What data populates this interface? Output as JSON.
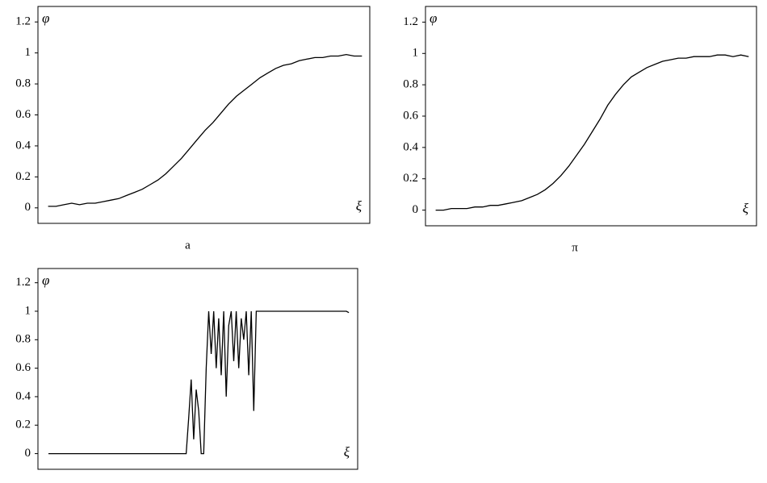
{
  "chart_data": [
    {
      "type": "line",
      "ylabel": "φ",
      "xlabel": "ξ",
      "caption": "a",
      "x": [
        0,
        1,
        2,
        3,
        4,
        5,
        6,
        7,
        8,
        9,
        10,
        11,
        12,
        13,
        14,
        15,
        16,
        17,
        18,
        19,
        20,
        21,
        22,
        23,
        24,
        25,
        26,
        27,
        28,
        29,
        30,
        31,
        32,
        33,
        34,
        35,
        36,
        37,
        38,
        39,
        40
      ],
      "values": [
        0.01,
        0.01,
        0.02,
        0.03,
        0.02,
        0.03,
        0.03,
        0.04,
        0.05,
        0.06,
        0.08,
        0.1,
        0.12,
        0.15,
        0.18,
        0.22,
        0.27,
        0.32,
        0.38,
        0.44,
        0.5,
        0.55,
        0.61,
        0.67,
        0.72,
        0.76,
        0.8,
        0.84,
        0.87,
        0.9,
        0.92,
        0.93,
        0.95,
        0.96,
        0.97,
        0.97,
        0.98,
        0.98,
        0.99,
        0.98,
        0.98
      ],
      "color": "#000000",
      "xlim": [
        -1.3,
        41
      ],
      "ylim": [
        -0.1,
        1.3
      ],
      "yticks": [
        0,
        0.2,
        0.4,
        0.6,
        0.8,
        1,
        1.2
      ]
    },
    {
      "type": "line",
      "ylabel": "φ",
      "xlabel": "ξ",
      "caption": "π",
      "x": [
        0,
        1,
        2,
        3,
        4,
        5,
        6,
        7,
        8,
        9,
        10,
        11,
        12,
        13,
        14,
        15,
        16,
        17,
        18,
        19,
        20,
        21,
        22,
        23,
        24,
        25,
        26,
        27,
        28,
        29,
        30,
        31,
        32,
        33,
        34,
        35,
        36,
        37,
        38,
        39,
        40
      ],
      "values": [
        0,
        0,
        0.01,
        0.01,
        0.01,
        0.02,
        0.02,
        0.03,
        0.03,
        0.04,
        0.05,
        0.06,
        0.08,
        0.1,
        0.13,
        0.17,
        0.22,
        0.28,
        0.35,
        0.42,
        0.5,
        0.58,
        0.67,
        0.74,
        0.8,
        0.85,
        0.88,
        0.91,
        0.93,
        0.95,
        0.96,
        0.97,
        0.97,
        0.98,
        0.98,
        0.98,
        0.99,
        0.99,
        0.98,
        0.99,
        0.98
      ],
      "color": "#000000",
      "xlim": [
        -1.3,
        41
      ],
      "ylim": [
        -0.1,
        1.3
      ],
      "yticks": [
        0,
        0.2,
        0.4,
        0.6,
        0.8,
        1,
        1.2
      ]
    },
    {
      "type": "line",
      "ylabel": "φ",
      "xlabel": "ξ",
      "x": [
        0,
        55,
        56,
        57,
        58,
        59,
        60,
        61,
        62,
        63,
        64,
        65,
        66,
        67,
        68,
        69,
        70,
        71,
        72,
        73,
        74,
        75,
        76,
        77,
        78,
        79,
        80,
        81,
        82,
        83,
        84,
        119,
        120
      ],
      "values": [
        0,
        0,
        0.25,
        0.52,
        0.1,
        0.45,
        0.3,
        0,
        0,
        0.6,
        1,
        0.7,
        1,
        0.6,
        0.95,
        0.55,
        1,
        0.4,
        0.9,
        1,
        0.65,
        1,
        0.6,
        0.95,
        0.8,
        1,
        0.55,
        1,
        0.3,
        1,
        1,
        1,
        0.99
      ],
      "color": "#000000",
      "xlim": [
        -4.2,
        123.5
      ],
      "ylim": [
        -0.11,
        1.3
      ],
      "yticks": [
        0,
        0.2,
        0.4,
        0.6,
        0.8,
        1,
        1.2
      ]
    }
  ]
}
